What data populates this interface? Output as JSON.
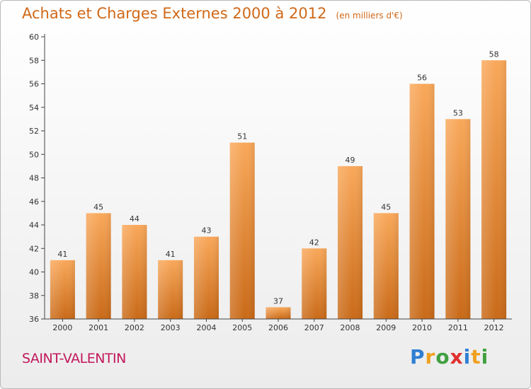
{
  "title": "Achats et Charges Externes 2000 à 2012",
  "subtitle": "(en milliers d'€)",
  "commune": "SAINT-VALENTIN",
  "logo": {
    "letters": [
      "P",
      "r",
      "o",
      "x",
      "i",
      "t",
      "i"
    ],
    "colors": [
      "#2f7fd3",
      "#f0a020",
      "#40a040",
      "#e03030",
      "#2f7fd3",
      "#f0a020",
      "#40a040"
    ]
  },
  "colors": {
    "bar_top": "#f9a85a",
    "bar_bottom": "#c96a18",
    "axis": "#444444",
    "grid": "#d8d8d8"
  },
  "chart_data": {
    "type": "bar",
    "title": "Achats et Charges Externes 2000 à 2012",
    "subtitle": "(en milliers d'€)",
    "categories": [
      "2000",
      "2001",
      "2002",
      "2003",
      "2004",
      "2005",
      "2006",
      "2007",
      "2008",
      "2009",
      "2010",
      "2011",
      "2012"
    ],
    "values": [
      41,
      45,
      44,
      41,
      43,
      51,
      37,
      42,
      49,
      45,
      56,
      53,
      58
    ],
    "ylim": [
      36,
      60
    ],
    "yticks": [
      36,
      38,
      40,
      42,
      44,
      46,
      48,
      50,
      52,
      54,
      56,
      58,
      60
    ],
    "xlabel": "",
    "ylabel": "",
    "grid": false,
    "legend": "none"
  }
}
